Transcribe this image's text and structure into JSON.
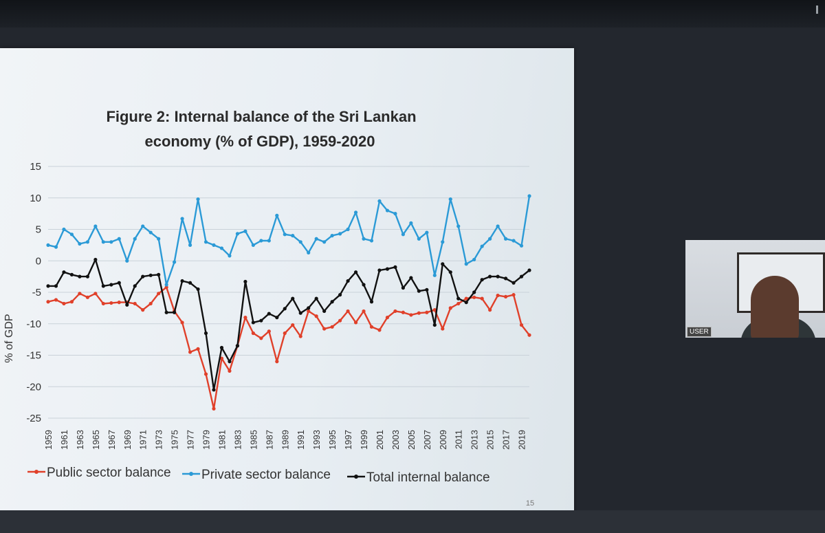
{
  "slide": {
    "page_number": "15"
  },
  "video": {
    "user_label": "USER"
  },
  "chart_data": {
    "type": "line",
    "title": "Figure 2: Internal balance of the Sri Lankan economy (% of GDP), 1959-2020",
    "title_lines": [
      "Figure 2: Internal balance of the Sri Lankan",
      "economy (% of GDP), 1959-2020"
    ],
    "ylabel": "% of GDP",
    "xlabel": "",
    "ylim": [
      -25,
      15
    ],
    "yticks": [
      15,
      10,
      5,
      0,
      -5,
      -10,
      -15,
      -20,
      -25
    ],
    "ytick_labels": [
      "15",
      "10",
      "5",
      "0",
      "-5",
      "-10",
      "-15",
      "-20",
      "-25"
    ],
    "grid": true,
    "legend": "bottom",
    "x": [
      1959,
      1960,
      1961,
      1962,
      1963,
      1964,
      1965,
      1966,
      1967,
      1968,
      1969,
      1970,
      1971,
      1972,
      1973,
      1974,
      1975,
      1976,
      1977,
      1978,
      1979,
      1980,
      1981,
      1982,
      1983,
      1984,
      1985,
      1986,
      1987,
      1988,
      1989,
      1990,
      1991,
      1992,
      1993,
      1994,
      1995,
      1996,
      1997,
      1998,
      1999,
      2000,
      2001,
      2002,
      2003,
      2004,
      2005,
      2006,
      2007,
      2008,
      2009,
      2010,
      2011,
      2012,
      2013,
      2014,
      2015,
      2016,
      2017,
      2018,
      2019,
      2020
    ],
    "xtick_labels": [
      "1959",
      "1961",
      "1963",
      "1965",
      "1967",
      "1969",
      "1971",
      "1973",
      "1975",
      "1977",
      "1979",
      "1981",
      "1983",
      "1985",
      "1987",
      "1989",
      "1991",
      "1993",
      "1995",
      "1997",
      "1999",
      "2001",
      "2003",
      "2005",
      "2007",
      "2009",
      "2011",
      "2013",
      "2015",
      "2017",
      "2019"
    ],
    "series": [
      {
        "name": "Public sector balance",
        "color": "#e0402a",
        "values": [
          -6.5,
          -6.2,
          -6.8,
          -6.5,
          -5.2,
          -5.8,
          -5.2,
          -6.8,
          -6.7,
          -6.6,
          -6.6,
          -6.8,
          -7.8,
          -6.8,
          -5.2,
          -4.2,
          -8.0,
          -9.8,
          -14.5,
          -14.0,
          -18.0,
          -23.5,
          -15.5,
          -17.5,
          -13.5,
          -9.0,
          -11.5,
          -12.3,
          -11.2,
          -16.0,
          -11.5,
          -10.2,
          -12.0,
          -8.0,
          -8.8,
          -10.8,
          -10.5,
          -9.5,
          -8.0,
          -9.8,
          -8.0,
          -10.5,
          -11.0,
          -9.0,
          -8.0,
          -8.2,
          -8.6,
          -8.3,
          -8.2,
          -7.8,
          -10.8,
          -7.5,
          -6.8,
          -6.0,
          -5.8,
          -6.0,
          -7.8,
          -5.5,
          -5.7,
          -5.4,
          -10.2,
          -11.8
        ]
      },
      {
        "name": "Private sector balance",
        "color": "#2b9ad6",
        "values": [
          2.5,
          2.2,
          5.0,
          4.2,
          2.7,
          3.0,
          5.5,
          3.0,
          3.0,
          3.5,
          0.0,
          3.5,
          5.5,
          4.5,
          3.5,
          -3.8,
          -0.2,
          6.7,
          2.5,
          9.8,
          3.0,
          2.5,
          2.0,
          0.8,
          4.3,
          4.7,
          2.5,
          3.2,
          3.2,
          7.2,
          4.2,
          4.0,
          3.0,
          1.3,
          3.5,
          3.0,
          4.0,
          4.3,
          5.0,
          7.7,
          3.5,
          3.2,
          9.5,
          8.0,
          7.5,
          4.2,
          6.0,
          3.5,
          4.5,
          -2.3,
          3.0,
          9.8,
          5.5,
          -0.5,
          0.2,
          2.3,
          3.5,
          5.5,
          3.5,
          3.2,
          2.4,
          10.3
        ]
      },
      {
        "name": "Total internal balance",
        "color": "#111111",
        "values": [
          -4.0,
          -4.0,
          -1.8,
          -2.2,
          -2.5,
          -2.5,
          0.2,
          -4.0,
          -3.8,
          -3.5,
          -7.0,
          -4.0,
          -2.5,
          -2.3,
          -2.2,
          -8.2,
          -8.2,
          -3.2,
          -3.5,
          -4.5,
          -11.5,
          -20.5,
          -13.8,
          -16.0,
          -13.5,
          -3.3,
          -9.8,
          -9.5,
          -8.4,
          -9.0,
          -7.6,
          -6.0,
          -8.3,
          -7.5,
          -6.0,
          -8.0,
          -6.5,
          -5.4,
          -3.2,
          -1.8,
          -3.8,
          -6.5,
          -1.5,
          -1.3,
          -1.0,
          -4.3,
          -2.7,
          -4.8,
          -4.6,
          -10.2,
          -0.5,
          -1.8,
          -6.0,
          -6.6,
          -5.0,
          -3.0,
          -2.5,
          -2.5,
          -2.8,
          -3.5,
          -2.5,
          -1.5
        ]
      }
    ]
  }
}
